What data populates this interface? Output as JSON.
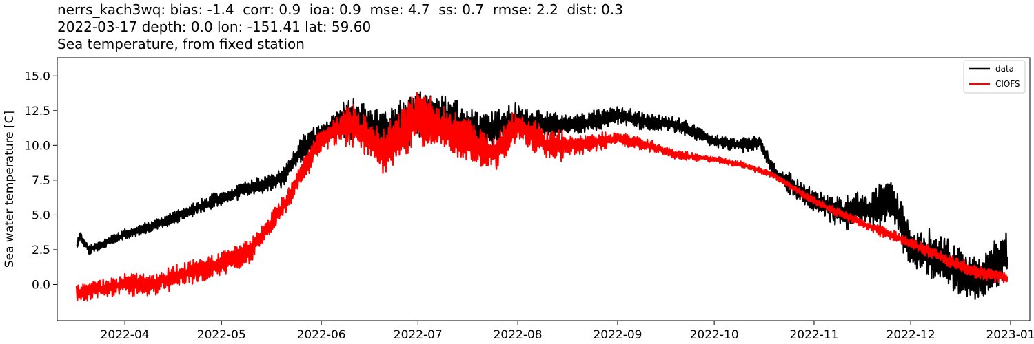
{
  "title": {
    "line1": "nerrs_kach3wq: bias: -1.4  corr: 0.9  ioa: 0.9  mse: 4.7  ss: 0.7  rmse: 2.2  dist: 0.3",
    "line2": "2022-03-17 depth: 0.0 lon: -151.41 lat: 59.60",
    "line3": "Sea temperature, from fixed station"
  },
  "chart_data": {
    "type": "line",
    "ylabel": "Sea water temperature [C]",
    "xlabel": "",
    "xlim": [
      "2022-03-11",
      "2023-01-07"
    ],
    "ylim": [
      -2.6,
      16.3
    ],
    "yticks": [
      0.0,
      2.5,
      5.0,
      7.5,
      10.0,
      12.5,
      15.0
    ],
    "ytick_labels": [
      "0.0",
      "2.5",
      "5.0",
      "7.5",
      "10.0",
      "12.5",
      "15.0"
    ],
    "xticks": [
      "2022-04-01",
      "2022-05-01",
      "2022-06-01",
      "2022-07-01",
      "2022-08-01",
      "2022-09-01",
      "2022-10-01",
      "2022-11-01",
      "2022-12-01",
      "2023-01-01"
    ],
    "xtick_labels": [
      "2022-04",
      "2022-05",
      "2022-06",
      "2022-07",
      "2022-08",
      "2022-09",
      "2022-10",
      "2022-11",
      "2022-12",
      "2023-01"
    ],
    "legend": {
      "position": "upper right"
    },
    "grid": false,
    "series": [
      {
        "name": "data",
        "color": "#000000",
        "noise": [
          0.3,
          0.35,
          0.45,
          0.5,
          0.6,
          0.9,
          1.3,
          1.6,
          1.4,
          1.2,
          0.8,
          0.7,
          0.6,
          0.5,
          0.4,
          0.5,
          0.7,
          1.1,
          1.4,
          1.6,
          1.5
        ],
        "x": [
          "2022-03-17",
          "2022-03-18",
          "2022-03-21",
          "2022-04-01",
          "2022-04-10",
          "2022-04-20",
          "2022-05-01",
          "2022-05-10",
          "2022-05-20",
          "2022-05-25",
          "2022-06-01",
          "2022-06-10",
          "2022-06-20",
          "2022-07-01",
          "2022-07-10",
          "2022-07-20",
          "2022-08-01",
          "2022-08-10",
          "2022-08-20",
          "2022-09-01",
          "2022-09-10",
          "2022-09-20",
          "2022-10-01",
          "2022-10-10",
          "2022-10-15",
          "2022-10-20",
          "2022-11-01",
          "2022-11-10",
          "2022-11-20",
          "2022-11-25",
          "2022-12-01",
          "2022-12-10",
          "2022-12-20",
          "2022-12-31"
        ],
        "y": [
          2.6,
          3.5,
          2.5,
          3.6,
          4.2,
          5.2,
          6.2,
          7.0,
          7.6,
          9.5,
          10.8,
          12.0,
          11.0,
          12.0,
          12.0,
          11.0,
          11.8,
          11.5,
          11.5,
          12.2,
          11.7,
          11.5,
          10.3,
          10.0,
          10.2,
          8.0,
          6.0,
          5.2,
          5.5,
          6.3,
          2.5,
          2.0,
          0.3,
          2.0
        ]
      },
      {
        "name": "CIOFS",
        "color": "#ff0000",
        "noise": [
          0.6,
          0.7,
          0.8,
          0.8,
          0.7,
          0.9,
          1.4,
          1.7,
          1.4,
          1.2,
          1.0,
          0.6,
          0.4,
          0.3,
          0.2,
          0.2,
          0.25,
          0.3,
          0.35,
          0.4,
          0.45
        ],
        "x": [
          "2022-03-17",
          "2022-04-01",
          "2022-04-10",
          "2022-04-20",
          "2022-05-01",
          "2022-05-10",
          "2022-05-20",
          "2022-06-01",
          "2022-06-10",
          "2022-06-20",
          "2022-07-01",
          "2022-07-15",
          "2022-07-25",
          "2022-08-01",
          "2022-08-10",
          "2022-08-20",
          "2022-09-01",
          "2022-09-10",
          "2022-09-20",
          "2022-10-01",
          "2022-10-10",
          "2022-10-20",
          "2022-11-01",
          "2022-11-10",
          "2022-11-20",
          "2022-12-01",
          "2022-12-10",
          "2022-12-20",
          "2022-12-31"
        ],
        "y": [
          -0.6,
          0.0,
          0.0,
          0.8,
          1.4,
          2.4,
          5.5,
          10.5,
          11.5,
          9.5,
          12.0,
          10.5,
          9.3,
          11.5,
          10.0,
          10.0,
          10.5,
          10.0,
          9.3,
          9.0,
          8.6,
          7.8,
          6.0,
          5.0,
          4.0,
          3.0,
          2.0,
          1.0,
          0.5
        ]
      }
    ]
  }
}
